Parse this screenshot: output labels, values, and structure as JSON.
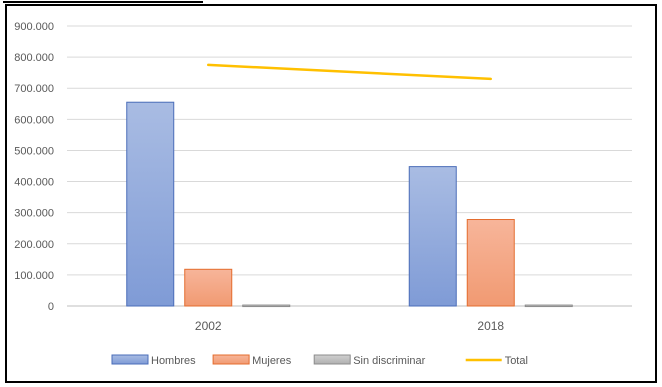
{
  "chart_data": {
    "type": "bar",
    "categories": [
      "2002",
      "2018"
    ],
    "ylim": [
      0,
      900000
    ],
    "yticks": [
      "0",
      "100.000",
      "200.000",
      "300.000",
      "400.000",
      "500.000",
      "600.000",
      "700.000",
      "800.000",
      "900.000"
    ],
    "series": [
      {
        "name": "Hombres",
        "type": "bar",
        "color": "#8FA9DC",
        "values": [
          655000,
          448000
        ]
      },
      {
        "name": "Mujeres",
        "type": "bar",
        "color": "#F4A582",
        "values": [
          118000,
          278000
        ]
      },
      {
        "name": "Sin discriminar",
        "type": "bar",
        "color": "#BFBFBF",
        "values": [
          3000,
          3000
        ]
      },
      {
        "name": "Total",
        "type": "line",
        "color": "#FFC000",
        "values": [
          775000,
          730000
        ]
      }
    ],
    "grid": true,
    "legend_position": "bottom"
  }
}
